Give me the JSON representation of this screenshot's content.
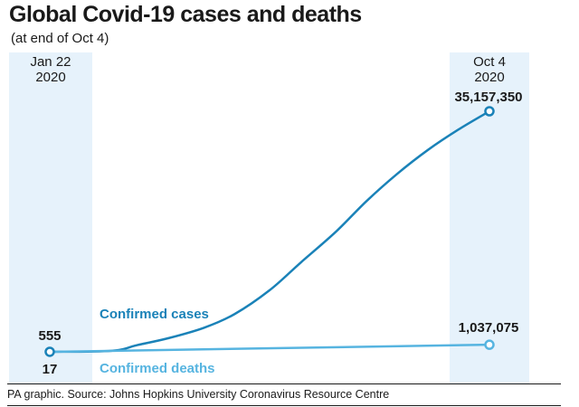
{
  "chart_data": {
    "type": "line",
    "title": "Global Covid-19 cases and deaths",
    "subtitle": "(at end of Oct 4)",
    "source": "PA graphic. Source: Johns Hopkins University Coronavirus Resource Centre",
    "start_label": [
      "Jan 22",
      "2020"
    ],
    "end_label": [
      "Oct 4",
      "2020"
    ],
    "series": [
      {
        "name": "Confirmed cases",
        "color": "#1a82b8",
        "start_label": "555",
        "end_label": "35,157,350",
        "points": [
          [
            0,
            555
          ],
          [
            0.14,
            150000
          ],
          [
            0.2,
            1000000
          ],
          [
            0.27,
            2000000
          ],
          [
            0.35,
            3500000
          ],
          [
            0.42,
            5500000
          ],
          [
            0.5,
            9000000
          ],
          [
            0.57,
            13000000
          ],
          [
            0.65,
            17500000
          ],
          [
            0.72,
            22000000
          ],
          [
            0.79,
            26000000
          ],
          [
            0.86,
            29500000
          ],
          [
            0.93,
            32500000
          ],
          [
            1,
            35157350
          ]
        ]
      },
      {
        "name": "Confirmed deaths",
        "color": "#56b4e0",
        "start_label": "17",
        "end_label": "1,037,075",
        "points": [
          [
            0,
            17
          ],
          [
            1,
            1037075
          ]
        ]
      }
    ]
  }
}
